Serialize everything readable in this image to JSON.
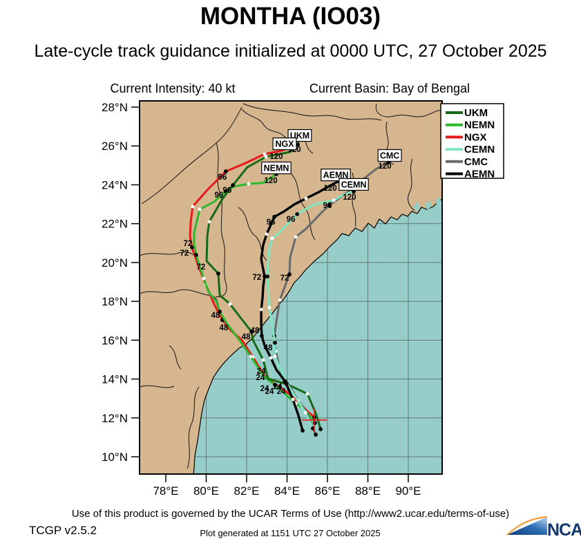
{
  "title": "MONTHA (IO03)",
  "subtitle": "Late-cycle track guidance initialized at 0000 UTC, 27 October 2025",
  "info": {
    "intensity": "Current Intensity: 40 kt",
    "basin": "Current Basin: Bay of Bengal"
  },
  "footer": {
    "terms": "Use of this product is governed by the UCAR Terms of Use (http://www2.ucar.edu/terms-of-use)",
    "version": "TCGP v2.5.2",
    "generated": "Plot generated at 1151 UTC   27 October 2025",
    "logo_text": "NCAR"
  },
  "chart_data": {
    "type": "line",
    "kind": "tropical-cyclone-track-guidance-map",
    "x_axis": {
      "ticks": [
        78,
        80,
        82,
        84,
        86,
        88,
        90
      ],
      "tick_labels": [
        "78°E",
        "80°E",
        "82°E",
        "84°E",
        "86°E",
        "88°E",
        "90°E"
      ]
    },
    "y_axis": {
      "ticks": [
        28,
        26,
        24,
        22,
        20,
        18,
        16,
        14,
        12,
        10
      ],
      "tick_labels": [
        "28°N",
        "26°N",
        "24°N",
        "22°N",
        "20°N",
        "18°N",
        "16°N",
        "14°N",
        "12°N",
        "10°N"
      ]
    },
    "bounds": {
      "lon": [
        76.7,
        91.68
      ],
      "lat": [
        9.11,
        28.32
      ]
    },
    "grid": true,
    "legend_position": "top-right",
    "colors": {
      "UKM": "#156b15",
      "NEMN": "#2eb82e",
      "NGX": "#e8191b",
      "CEMN": "#7fe6c2",
      "CMC": "#6a6a6a",
      "AEMN": "#000000"
    },
    "legend": [
      {
        "label": "UKM",
        "color": "#156b15"
      },
      {
        "label": "NEMN",
        "color": "#2eb82e"
      },
      {
        "label": "NGX",
        "color": "#e8191b"
      },
      {
        "label": "CEMN",
        "color": "#7fe6c2"
      },
      {
        "label": "CMC",
        "color": "#6a6a6a"
      },
      {
        "label": "AEMN",
        "color": "#000000"
      }
    ],
    "start_position": {
      "lon": 85.35,
      "lat": 11.89
    },
    "tracks": [
      {
        "name": "NGX",
        "color": "#e8191b",
        "width": 3,
        "points": [
          [
            85.35,
            12.03,
            "b"
          ],
          [
            85.04,
            12.31
          ],
          [
            84.67,
            12.7,
            "w"
          ],
          [
            84.15,
            13.2
          ],
          [
            83.64,
            13.59,
            "b"
          ],
          [
            82.99,
            14.02
          ],
          [
            82.31,
            15.12,
            "w"
          ],
          [
            81.76,
            16.01
          ],
          [
            81.21,
            16.51
          ],
          [
            80.8,
            17.04,
            "b"
          ],
          [
            80.39,
            17.86
          ],
          [
            79.98,
            18.86,
            "w"
          ],
          [
            79.61,
            19.82
          ],
          [
            79.3,
            20.78,
            "b"
          ],
          [
            79.2,
            21.35
          ],
          [
            79.23,
            22.06
          ],
          [
            79.33,
            22.88,
            "w"
          ],
          [
            80.05,
            23.73
          ],
          [
            80.97,
            24.69,
            "b"
          ],
          [
            81.86,
            25.08
          ],
          [
            82.89,
            25.58,
            "w"
          ],
          [
            83.74,
            25.76
          ],
          [
            84.09,
            25.9,
            "b"
          ]
        ]
      },
      {
        "name": "NEMN",
        "color": "#2eb82e",
        "width": 3,
        "points": [
          [
            85.38,
            11.74,
            "b"
          ],
          [
            84.87,
            12.45
          ],
          [
            84.43,
            12.74,
            "w"
          ],
          [
            83.4,
            13.7,
            "b"
          ],
          [
            82.86,
            14.13
          ],
          [
            82.21,
            15.16,
            "w"
          ],
          [
            81.59,
            16.08
          ],
          [
            81.04,
            16.83
          ],
          [
            80.67,
            17.47,
            "b"
          ],
          [
            80.5,
            18.0
          ],
          [
            80.12,
            18.47
          ],
          [
            79.88,
            19.18,
            "w"
          ],
          [
            79.71,
            19.71
          ],
          [
            79.5,
            20.39,
            "b"
          ],
          [
            79.4,
            20.99
          ],
          [
            79.4,
            21.53
          ],
          [
            79.54,
            22.13
          ],
          [
            79.68,
            22.74,
            "w"
          ],
          [
            80.39,
            23.13
          ],
          [
            80.97,
            23.66,
            "b"
          ],
          [
            81.35,
            23.91
          ],
          [
            82.1,
            24.05,
            "w"
          ],
          [
            82.79,
            24.09
          ],
          [
            83.47,
            24.55,
            "b"
          ]
        ]
      },
      {
        "name": "UKM",
        "color": "#156b15",
        "width": 3,
        "points": [
          [
            85.66,
            11.42,
            "b"
          ],
          [
            85.45,
            12.17
          ],
          [
            85.01,
            13.24,
            "w"
          ],
          [
            83.98,
            13.74,
            "b"
          ],
          [
            83.06,
            14.02
          ],
          [
            82.82,
            14.98,
            "w"
          ],
          [
            82.31,
            16.01
          ],
          [
            82.24,
            16.44,
            "b"
          ],
          [
            81.76,
            17.08
          ],
          [
            81.18,
            17.86,
            "w"
          ],
          [
            80.67,
            18.32
          ],
          [
            80.63,
            18.93
          ],
          [
            80.6,
            19.43,
            "b"
          ],
          [
            80.02,
            20.07
          ],
          [
            80.05,
            21.35
          ],
          [
            80.15,
            22.1,
            "w"
          ],
          [
            80.8,
            23.27
          ],
          [
            81.32,
            23.98,
            "b"
          ],
          [
            82.03,
            24.9
          ],
          [
            82.96,
            25.44,
            "w"
          ],
          [
            84.15,
            25.69
          ],
          [
            84.53,
            26.08,
            "b"
          ]
        ]
      },
      {
        "name": "CMC",
        "color": "#6a6a6a",
        "width": 3,
        "points": [
          [
            85.42,
            11.14,
            "b"
          ],
          [
            84.94,
            12.35
          ],
          [
            84.56,
            12.88,
            "w"
          ],
          [
            84.15,
            13.59
          ],
          [
            83.88,
            13.88,
            "b"
          ],
          [
            83.61,
            14.66
          ],
          [
            83.44,
            15.44,
            "w"
          ],
          [
            83.37,
            16.22,
            "b"
          ],
          [
            83.5,
            17.15
          ],
          [
            83.64,
            18.07,
            "w"
          ],
          [
            83.91,
            18.82
          ],
          [
            84.12,
            19.39,
            "b"
          ],
          [
            84.15,
            20.25
          ],
          [
            84.43,
            21.32,
            "w"
          ],
          [
            84.91,
            21.71
          ],
          [
            85.28,
            22.1
          ],
          [
            85.76,
            22.63
          ],
          [
            86.1,
            22.95,
            "b"
          ],
          [
            86.62,
            23.34
          ],
          [
            87.09,
            23.7
          ],
          [
            87.64,
            24.19,
            "w"
          ],
          [
            88.43,
            24.83
          ],
          [
            89.01,
            25.15,
            "b"
          ]
        ]
      },
      {
        "name": "CEMN",
        "color": "#7fe6c2",
        "width": 3,
        "points": [
          [
            85.28,
            11.46,
            "b"
          ],
          [
            84.91,
            12.28,
            "w"
          ],
          [
            84.5,
            12.95
          ],
          [
            83.98,
            13.77,
            "b"
          ],
          [
            83.64,
            14.59
          ],
          [
            83.4,
            15.16,
            "w"
          ],
          [
            83.4,
            15.87,
            "b"
          ],
          [
            83.26,
            16.8
          ],
          [
            83.13,
            17.68,
            "w"
          ],
          [
            83.06,
            18.57
          ],
          [
            83.03,
            19.28,
            "b"
          ],
          [
            83.06,
            20.0
          ],
          [
            83.13,
            20.71
          ],
          [
            83.26,
            21.24,
            "w"
          ],
          [
            83.57,
            21.49
          ],
          [
            84.5,
            22.49,
            "b"
          ],
          [
            85.35,
            22.99
          ],
          [
            86.31,
            23.2,
            "w"
          ],
          [
            86.79,
            23.49
          ],
          [
            87.3,
            23.66,
            "b"
          ]
        ]
      },
      {
        "name": "AEMN",
        "color": "#000000",
        "width": 3.4,
        "points": [
          [
            84.77,
            11.35,
            "b"
          ],
          [
            84.56,
            12.13
          ],
          [
            84.29,
            12.95,
            "w"
          ],
          [
            83.91,
            13.88,
            "b"
          ],
          [
            83.47,
            14.48
          ],
          [
            83.2,
            15.09,
            "w"
          ],
          [
            82.89,
            15.73
          ],
          [
            82.75,
            16.22,
            "b"
          ],
          [
            82.72,
            16.87
          ],
          [
            82.72,
            17.58,
            "w"
          ],
          [
            82.79,
            18.22
          ],
          [
            82.82,
            18.79
          ],
          [
            82.89,
            19.28,
            "b"
          ],
          [
            82.72,
            20.18
          ],
          [
            82.82,
            20.92
          ],
          [
            82.99,
            21.46,
            "w"
          ],
          [
            83.37,
            22.35,
            "b"
          ],
          [
            83.85,
            22.63
          ],
          [
            84.36,
            22.99
          ],
          [
            84.94,
            23.3,
            "w"
          ],
          [
            85.56,
            23.62
          ],
          [
            86.1,
            23.94
          ],
          [
            86.55,
            24.19,
            "b"
          ]
        ]
      }
    ],
    "hour_labels": [
      {
        "t": "120",
        "lon": 83.47,
        "lat": 25.47
      },
      {
        "t": "120",
        "lon": 84.36,
        "lat": 25.83
      },
      {
        "t": "120",
        "lon": 83.2,
        "lat": 24.23
      },
      {
        "t": "120",
        "lon": 86.14,
        "lat": 23.84
      },
      {
        "t": "120",
        "lon": 87.09,
        "lat": 23.38
      },
      {
        "t": "120",
        "lon": 88.84,
        "lat": 24.98
      },
      {
        "t": "96",
        "lon": 80.8,
        "lat": 24.41
      },
      {
        "t": "96",
        "lon": 81.04,
        "lat": 23.73
      },
      {
        "t": "96",
        "lon": 80.63,
        "lat": 23.48
      },
      {
        "t": "96",
        "lon": 83.2,
        "lat": 22.09
      },
      {
        "t": "96",
        "lon": 84.19,
        "lat": 22.24
      },
      {
        "t": "96",
        "lon": 86.0,
        "lat": 22.95
      },
      {
        "t": "72",
        "lon": 79.09,
        "lat": 20.99
      },
      {
        "t": "72",
        "lon": 78.92,
        "lat": 20.49
      },
      {
        "t": "72",
        "lon": 79.74,
        "lat": 19.78
      },
      {
        "t": "72",
        "lon": 82.51,
        "lat": 19.25
      },
      {
        "t": "72",
        "lon": 83.88,
        "lat": 19.21
      },
      {
        "t": "48",
        "lon": 80.46,
        "lat": 17.29
      },
      {
        "t": "48",
        "lon": 80.87,
        "lat": 16.65
      },
      {
        "t": "48",
        "lon": 82.41,
        "lat": 16.51
      },
      {
        "t": "48",
        "lon": 81.97,
        "lat": 16.19
      },
      {
        "t": "48",
        "lon": 83.06,
        "lat": 15.62
      },
      {
        "t": "24",
        "lon": 82.72,
        "lat": 14.41
      },
      {
        "t": "24",
        "lon": 82.68,
        "lat": 14.09
      },
      {
        "t": "24",
        "lon": 82.89,
        "lat": 13.52
      },
      {
        "t": "24",
        "lon": 83.13,
        "lat": 13.38
      },
      {
        "t": "24",
        "lon": 83.54,
        "lat": 13.63
      },
      {
        "t": "24",
        "lon": 83.71,
        "lat": 13.38
      }
    ],
    "model_labels": [
      {
        "t": "UKM",
        "lon": 84.63,
        "lat": 26.54
      },
      {
        "t": "NGX",
        "lon": 83.88,
        "lat": 26.11
      },
      {
        "t": "NEMN",
        "lon": 83.47,
        "lat": 24.87
      },
      {
        "t": "AEMN",
        "lon": 86.41,
        "lat": 24.51
      },
      {
        "t": "CEMN",
        "lon": 87.3,
        "lat": 24.02
      },
      {
        "t": "CMC",
        "lon": 89.08,
        "lat": 25.51
      }
    ]
  }
}
